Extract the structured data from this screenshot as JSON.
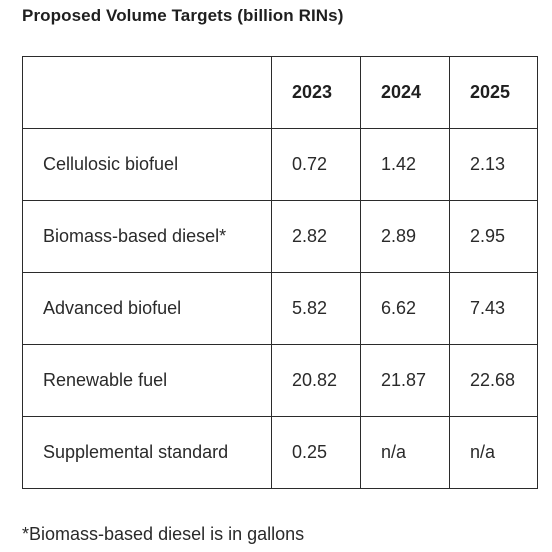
{
  "title": "Proposed Volume Targets (billion RINs)",
  "table": {
    "header": [
      "",
      "2023",
      "2024",
      "2025"
    ],
    "rows": [
      {
        "label": "Cellulosic biofuel",
        "values": [
          "0.72",
          "1.42",
          "2.13"
        ]
      },
      {
        "label": "Biomass-based diesel*",
        "values": [
          "2.82",
          "2.89",
          "2.95"
        ]
      },
      {
        "label": "Advanced biofuel",
        "values": [
          "5.82",
          "6.62",
          "7.43"
        ]
      },
      {
        "label": "Renewable fuel",
        "values": [
          "20.82",
          "21.87",
          "22.68"
        ]
      },
      {
        "label": "Supplemental standard",
        "values": [
          "0.25",
          "n/a",
          "n/a"
        ]
      }
    ]
  },
  "footnote": "*Biomass-based diesel is in gallons"
}
